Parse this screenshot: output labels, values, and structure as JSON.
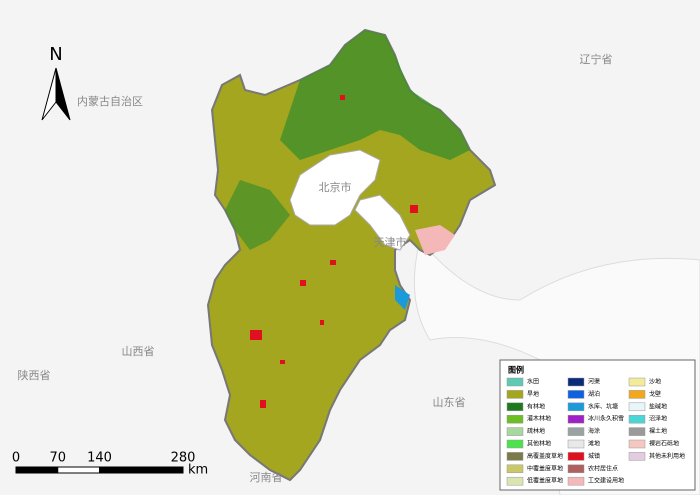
{
  "map": {
    "north": "N",
    "labels": [
      "内蒙古自治区",
      "辽宁省",
      "北京市",
      "天津市",
      "山西省",
      "陕西省",
      "山东省",
      "河南省"
    ],
    "legend": {
      "title": "图例",
      "items": [
        {
          "name": "水田",
          "color": "#5fc9b4"
        },
        {
          "name": "旱地",
          "color": "#a3a61e"
        },
        {
          "name": "有林地",
          "color": "#1f7a1f"
        },
        {
          "name": "灌木林地",
          "color": "#6bbf22"
        },
        {
          "name": "疏林地",
          "color": "#a8d8a0"
        },
        {
          "name": "其他林地",
          "color": "#4de24d"
        },
        {
          "name": "高覆盖度草地",
          "color": "#7a7a4a"
        },
        {
          "name": "中覆盖度草地",
          "color": "#c9c96a"
        },
        {
          "name": "低覆盖度草地",
          "color": "#d9e6b0"
        },
        {
          "name": "河渠",
          "color": "#0a2a7a"
        },
        {
          "name": "湖泊",
          "color": "#1060e0"
        },
        {
          "name": "水库、坑塘",
          "color": "#1a9ad8"
        },
        {
          "name": "冰川永久积雪",
          "color": "#a020c8"
        },
        {
          "name": "海涂",
          "color": "#9aa3a3"
        },
        {
          "name": "滩地",
          "color": "#e8e8e8"
        },
        {
          "name": "城镇",
          "color": "#e0101e"
        },
        {
          "name": "农村居住点",
          "color": "#b06060"
        },
        {
          "name": "工交建设用地",
          "color": "#f4b8b8"
        },
        {
          "name": "沙地",
          "color": "#f2ec9a"
        },
        {
          "name": "戈壁",
          "color": "#f2a81a"
        },
        {
          "name": "盐碱地",
          "color": "#e8f6fa"
        },
        {
          "name": "沼泽地",
          "color": "#4ad6d6"
        },
        {
          "name": "裸土地",
          "color": "#9a9a9a"
        },
        {
          "name": "裸岩石砾地",
          "color": "#f4c8c0"
        },
        {
          "name": "其他未利用地",
          "color": "#e4cce0"
        }
      ]
    },
    "scale": {
      "ticks": [
        0,
        70,
        140,
        280
      ],
      "unit": "km"
    }
  }
}
